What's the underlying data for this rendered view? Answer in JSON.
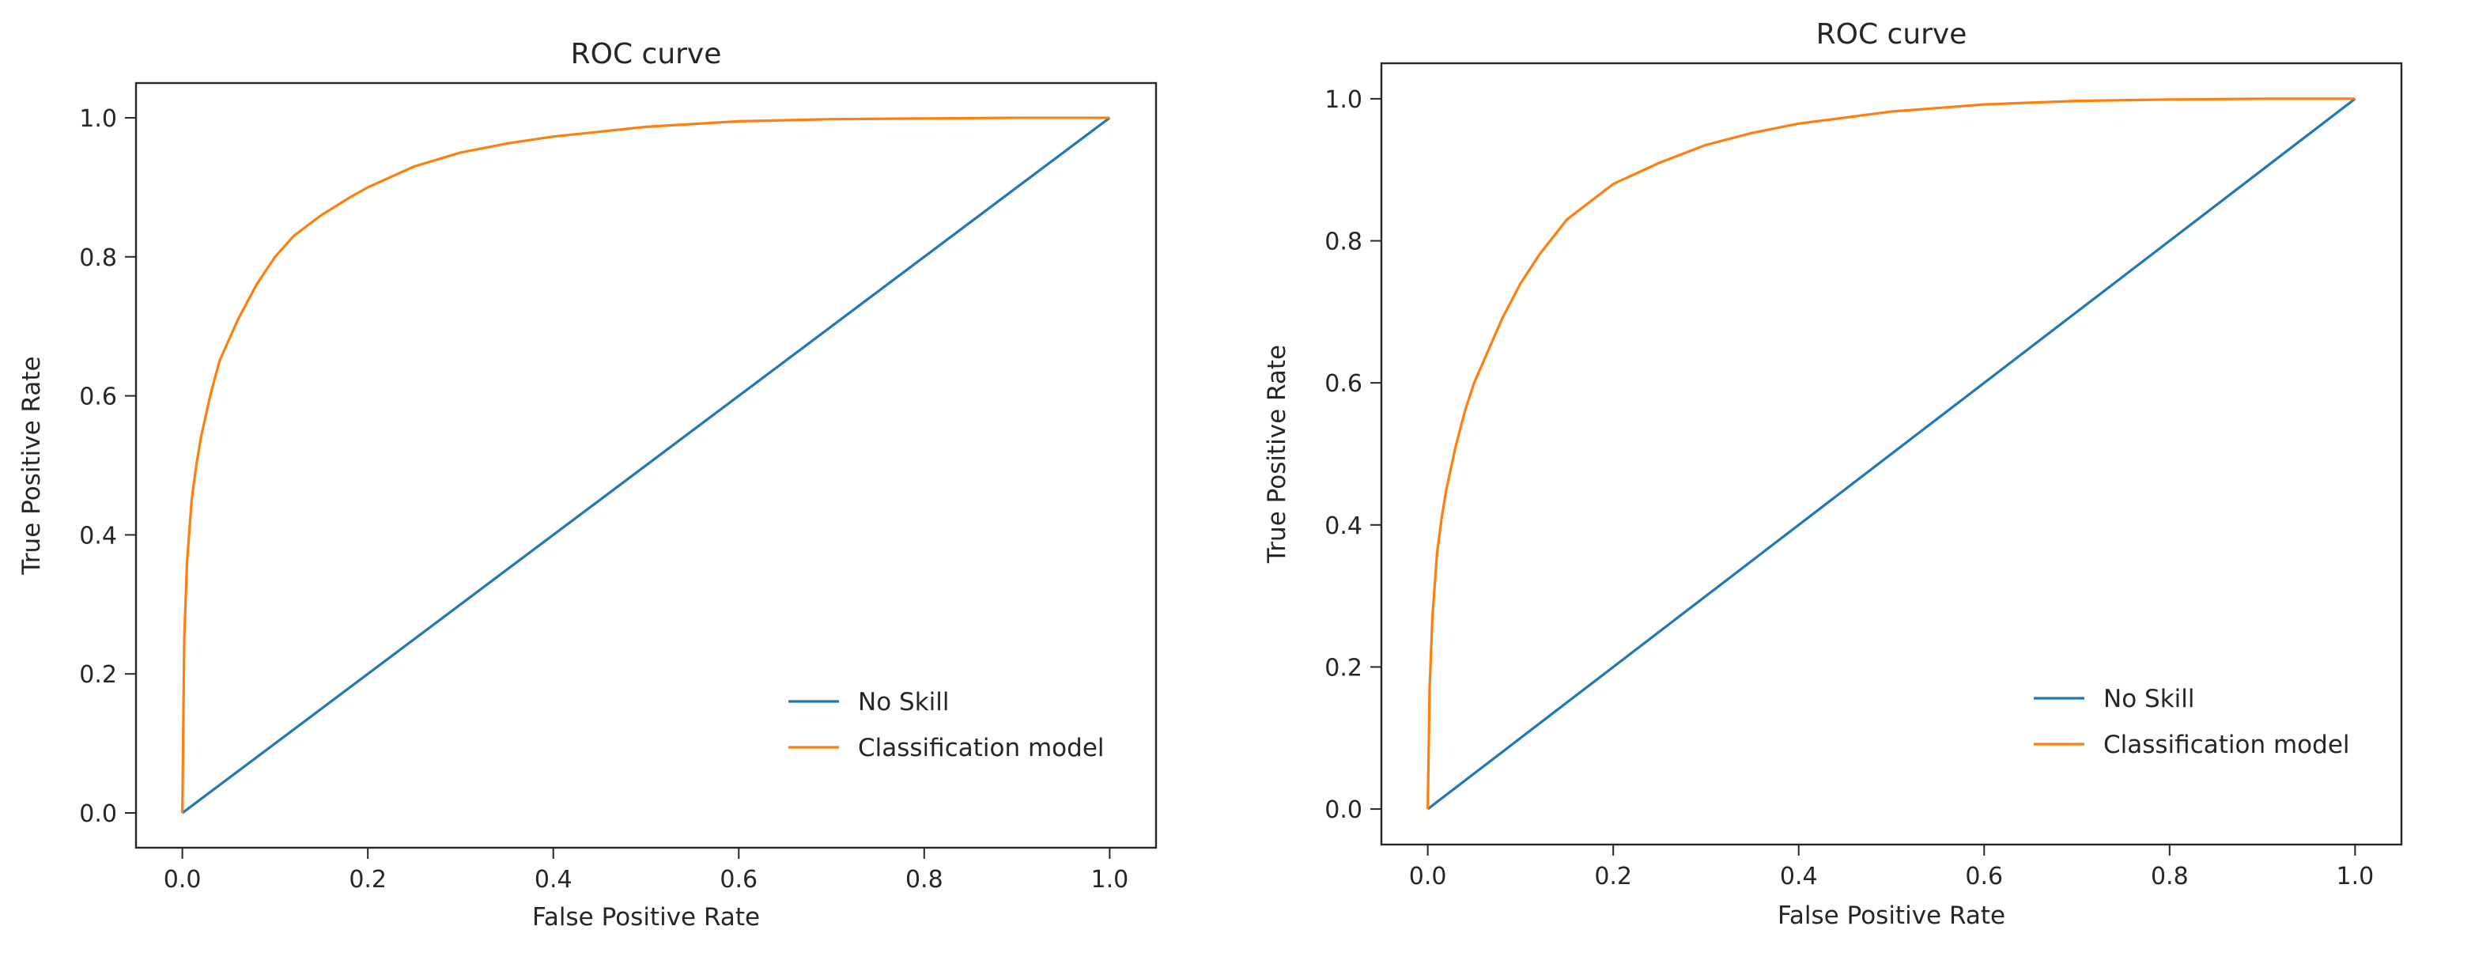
{
  "colors": {
    "no_skill": "#1f77b4",
    "classification_model": "#ff7f0e",
    "frame": "#262626",
    "background": "#ffffff"
  },
  "chart_data": [
    {
      "type": "line",
      "title": "ROC curve",
      "xlabel": "False Positive Rate",
      "ylabel": "True Positive Rate",
      "xlim": [
        -0.05,
        1.05
      ],
      "ylim": [
        -0.05,
        1.05
      ],
      "xticks": [
        0.0,
        0.2,
        0.4,
        0.6,
        0.8,
        1.0
      ],
      "yticks": [
        0.0,
        0.2,
        0.4,
        0.6,
        0.8,
        1.0
      ],
      "xtick_labels": [
        "0.0",
        "0.2",
        "0.4",
        "0.6",
        "0.8",
        "1.0"
      ],
      "ytick_labels": [
        "0.0",
        "0.2",
        "0.4",
        "0.6",
        "0.8",
        "1.0"
      ],
      "grid": false,
      "legend_position": "lower-right",
      "series": [
        {
          "name": "No Skill",
          "color": "#1f77b4",
          "x": [
            0,
            1
          ],
          "y": [
            0,
            1
          ]
        },
        {
          "name": "Classification model",
          "color": "#ff7f0e",
          "x": [
            0,
            0.002,
            0.005,
            0.01,
            0.015,
            0.02,
            0.03,
            0.04,
            0.05,
            0.06,
            0.08,
            0.1,
            0.12,
            0.15,
            0.18,
            0.2,
            0.25,
            0.3,
            0.35,
            0.4,
            0.5,
            0.6,
            0.7,
            0.8,
            0.9,
            1.0
          ],
          "y": [
            0,
            0.25,
            0.36,
            0.45,
            0.5,
            0.54,
            0.6,
            0.65,
            0.68,
            0.71,
            0.76,
            0.8,
            0.83,
            0.86,
            0.885,
            0.9,
            0.93,
            0.95,
            0.963,
            0.973,
            0.987,
            0.995,
            0.998,
            0.999,
            1.0,
            1.0
          ]
        }
      ]
    },
    {
      "type": "line",
      "title": "ROC curve",
      "xlabel": "False Positive Rate",
      "ylabel": "True Positive Rate",
      "xlim": [
        -0.05,
        1.05
      ],
      "ylim": [
        -0.05,
        1.05
      ],
      "xticks": [
        0.0,
        0.2,
        0.4,
        0.6,
        0.8,
        1.0
      ],
      "yticks": [
        0.0,
        0.2,
        0.4,
        0.6,
        0.8,
        1.0
      ],
      "xtick_labels": [
        "0.0",
        "0.2",
        "0.4",
        "0.6",
        "0.8",
        "1.0"
      ],
      "ytick_labels": [
        "0.0",
        "0.2",
        "0.4",
        "0.6",
        "0.8",
        "1.0"
      ],
      "grid": false,
      "legend_position": "lower-right",
      "series": [
        {
          "name": "No Skill",
          "color": "#1f77b4",
          "x": [
            0,
            1
          ],
          "y": [
            0,
            1
          ]
        },
        {
          "name": "Classification model",
          "color": "#ff7f0e",
          "x": [
            0,
            0.002,
            0.005,
            0.01,
            0.015,
            0.02,
            0.03,
            0.04,
            0.05,
            0.06,
            0.08,
            0.1,
            0.12,
            0.15,
            0.18,
            0.2,
            0.25,
            0.3,
            0.35,
            0.4,
            0.5,
            0.6,
            0.7,
            0.8,
            0.9,
            1.0
          ],
          "y": [
            0,
            0.17,
            0.27,
            0.36,
            0.41,
            0.45,
            0.51,
            0.56,
            0.6,
            0.63,
            0.69,
            0.74,
            0.78,
            0.83,
            0.86,
            0.88,
            0.91,
            0.935,
            0.952,
            0.965,
            0.982,
            0.992,
            0.997,
            0.999,
            1.0,
            1.0
          ]
        }
      ]
    }
  ]
}
